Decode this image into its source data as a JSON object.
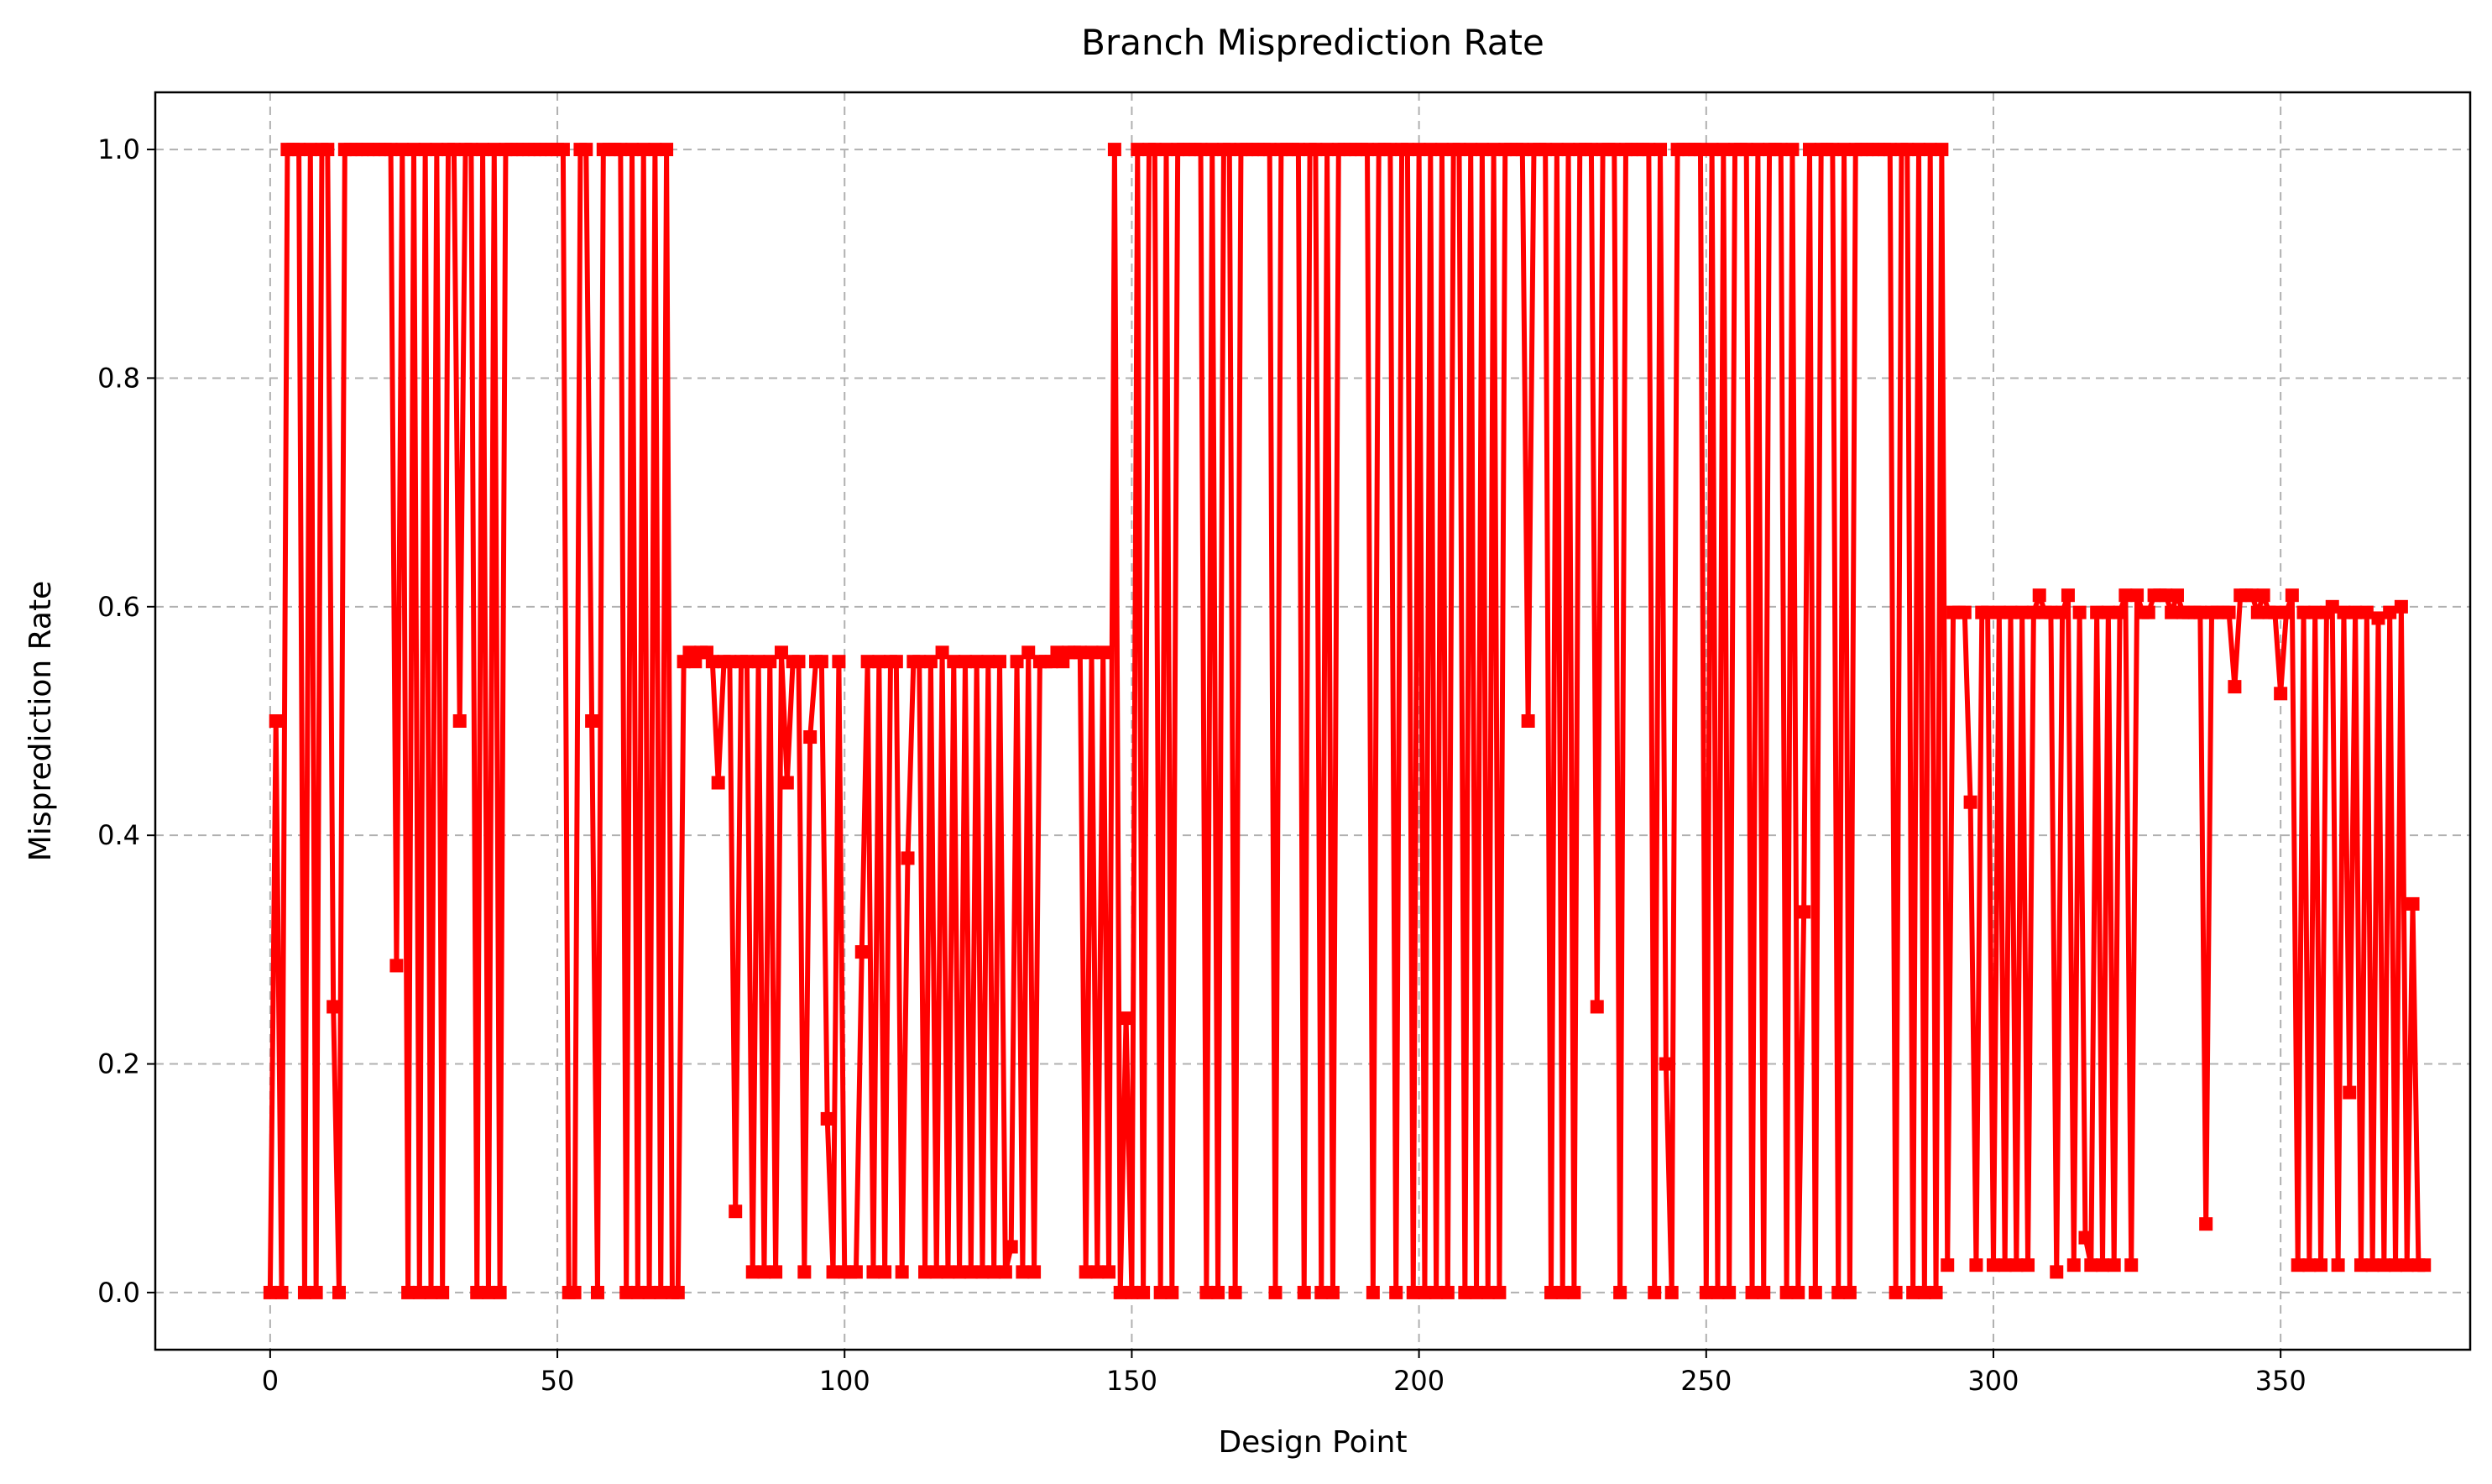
{
  "chart_data": {
    "type": "line",
    "title": "Branch Misprediction Rate",
    "xlabel": "Design Point",
    "ylabel": "Misprediction Rate",
    "xlim": [
      -20,
      383
    ],
    "ylim": [
      -0.05,
      1.05
    ],
    "xticks": [
      0,
      50,
      100,
      150,
      200,
      250,
      300,
      350
    ],
    "yticks": [
      0.0,
      0.2,
      0.4,
      0.6,
      0.8,
      1.0
    ],
    "xtick_labels": [
      "0",
      "50",
      "100",
      "150",
      "200",
      "250",
      "300",
      "350"
    ],
    "ytick_labels": [
      "0.0",
      "0.2",
      "0.4",
      "0.6",
      "0.8",
      "1.0"
    ],
    "grid": true,
    "marker": "square",
    "color": "#ff0000",
    "series": [
      {
        "values": [
          0,
          0.5,
          0,
          1,
          1,
          1,
          0,
          1,
          0,
          1,
          1,
          0.25,
          0,
          1,
          1,
          1,
          1,
          1,
          1,
          1,
          1,
          1,
          0.286,
          1,
          0,
          1,
          0,
          1,
          0,
          1,
          0,
          1,
          1,
          0.5,
          1,
          1,
          0,
          1,
          0,
          1,
          0,
          1,
          1,
          1,
          1,
          1,
          1,
          1,
          1,
          1,
          1,
          1,
          0,
          0,
          1,
          1,
          0.5,
          0,
          1,
          1,
          1,
          1,
          0,
          1,
          0,
          1,
          0,
          1,
          0,
          1,
          0,
          0,
          0.552,
          0.56,
          0.552,
          0.56,
          0.56,
          0.552,
          0.446,
          0.552,
          0.552,
          0.071,
          0.552,
          0.552,
          0.018,
          0.552,
          0.018,
          0.552,
          0.018,
          0.56,
          0.446,
          0.552,
          0.552,
          0.018,
          0.486,
          0.552,
          0.552,
          0.152,
          0.018,
          0.552,
          0.018,
          0.018,
          0.018,
          0.298,
          0.552,
          0.018,
          0.552,
          0.018,
          0.552,
          0.552,
          0.018,
          0.38,
          0.552,
          0.552,
          0.018,
          0.552,
          0.018,
          0.56,
          0.018,
          0.552,
          0.018,
          0.552,
          0.018,
          0.552,
          0.018,
          0.552,
          0.018,
          0.552,
          0.018,
          0.04,
          0.552,
          0.018,
          0.56,
          0.018,
          0.552,
          0.552,
          0.552,
          0.56,
          0.552,
          0.56,
          0.56,
          0.56,
          0.018,
          0.56,
          0.018,
          0.56,
          0.018,
          1,
          0,
          0.24,
          0,
          1,
          0,
          1,
          1,
          0,
          1,
          0,
          1,
          1,
          1,
          1,
          1,
          0,
          1,
          0,
          1,
          1,
          0,
          1,
          1,
          1,
          1,
          1,
          1,
          0,
          1,
          1,
          1,
          1,
          0,
          1,
          1,
          0,
          1,
          0,
          1,
          1,
          1,
          1,
          1,
          1,
          0,
          1,
          1,
          1,
          0,
          1,
          1,
          0,
          1,
          0,
          1,
          0,
          1,
          0,
          1,
          1,
          0,
          1,
          0,
          1,
          0,
          1,
          0,
          1,
          1,
          1,
          1,
          0.5,
          1,
          1,
          1,
          0,
          1,
          0,
          1,
          0,
          1,
          1,
          1,
          0.25,
          1,
          1,
          1,
          0,
          1,
          1,
          1,
          1,
          1,
          0,
          1,
          0.2,
          0,
          1,
          1,
          1,
          1,
          1,
          0,
          1,
          0,
          1,
          0,
          1,
          1,
          1,
          0,
          1,
          0,
          1,
          1,
          1,
          0,
          1,
          0,
          0.333,
          1,
          0,
          1,
          1,
          1,
          0,
          1,
          0,
          1,
          1,
          1,
          1,
          1,
          1,
          1,
          0,
          1,
          1,
          0,
          1,
          0,
          1,
          0,
          1,
          0.024,
          0.595,
          0.595,
          0.595,
          0.429,
          0.024,
          0.595,
          0.595,
          0.024,
          0.595,
          0.024,
          0.595,
          0.024,
          0.595,
          0.024,
          0.595,
          0.61,
          0.595,
          0.595,
          0.018,
          0.595,
          0.61,
          0.024,
          0.595,
          0.048,
          0.024,
          0.595,
          0.024,
          0.595,
          0.024,
          0.595,
          0.61,
          0.024,
          0.61,
          0.595,
          0.595,
          0.61,
          0.61,
          0.61,
          0.595,
          0.61,
          0.595,
          0.595,
          0.595,
          0.595,
          0.06,
          0.595,
          0.595,
          0.595,
          0.595,
          0.53,
          0.61,
          0.61,
          0.61,
          0.595,
          0.61,
          0.595,
          0.595,
          0.524,
          0.595,
          0.61,
          0.024,
          0.595,
          0.024,
          0.595,
          0.024,
          0.595,
          0.6,
          0.024,
          0.595,
          0.175,
          0.595,
          0.024,
          0.595,
          0.024,
          0.59,
          0.024,
          0.595,
          0.024,
          0.6,
          0.024,
          0.34,
          0.024,
          0.024
        ]
      }
    ]
  }
}
